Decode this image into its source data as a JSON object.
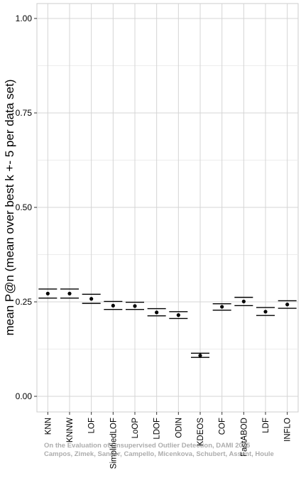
{
  "chart_data": {
    "type": "errorbar",
    "ylabel": "mean P@n (mean over best k +- 5 per data set)",
    "ylim": [
      -0.04,
      1.05
    ],
    "y_ticks": [
      0.0,
      0.25,
      0.5,
      0.75,
      1.0
    ],
    "y_tick_labels": [
      "0.00",
      "0.25",
      "0.50",
      "0.75",
      "1.00"
    ],
    "grid": true,
    "categories": [
      "KNN",
      "KNNW",
      "LOF",
      "SimplifiedLOF",
      "LoOP",
      "LDOF",
      "ODIN",
      "KDEOS",
      "COF",
      "FastABOD",
      "LDF",
      "INFLO"
    ],
    "means": [
      0.272,
      0.272,
      0.258,
      0.24,
      0.239,
      0.222,
      0.215,
      0.108,
      0.237,
      0.251,
      0.224,
      0.243
    ],
    "err_upper": [
      0.284,
      0.284,
      0.27,
      0.251,
      0.249,
      0.232,
      0.224,
      0.114,
      0.245,
      0.262,
      0.235,
      0.253
    ],
    "err_lower": [
      0.26,
      0.26,
      0.246,
      0.23,
      0.23,
      0.213,
      0.206,
      0.103,
      0.228,
      0.24,
      0.214,
      0.233
    ]
  },
  "watermark": {
    "line1": "On the Evaluation of Unsupervised Outlier Detection, DAMI 2015",
    "line2": "Campos, Zimek, Sander, Campello, Micenkova, Schubert, Assent, Houle"
  }
}
